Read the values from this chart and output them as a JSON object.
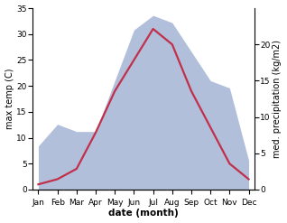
{
  "months": [
    "Jan",
    "Feb",
    "Mar",
    "Apr",
    "May",
    "Jun",
    "Jul",
    "Aug",
    "Sep",
    "Oct",
    "Nov",
    "Dec"
  ],
  "temperature": [
    1,
    2,
    4,
    11,
    19,
    25,
    31,
    28,
    19,
    12,
    5,
    2
  ],
  "precipitation": [
    6,
    9,
    8,
    8,
    15,
    22,
    24,
    23,
    19,
    15,
    14,
    4
  ],
  "temp_color": "#c0304a",
  "precip_fill_color": "#aab8d8",
  "temp_ylim": [
    0,
    35
  ],
  "precip_ylim": [
    0,
    25
  ],
  "temp_yticks": [
    0,
    5,
    10,
    15,
    20,
    25,
    30,
    35
  ],
  "precip_yticks": [
    0,
    5,
    10,
    15,
    20
  ],
  "xlabel": "date (month)",
  "ylabel_left": "max temp (C)",
  "ylabel_right": "med. precipitation (kg/m2)",
  "label_fontsize": 7,
  "tick_fontsize": 6.5
}
